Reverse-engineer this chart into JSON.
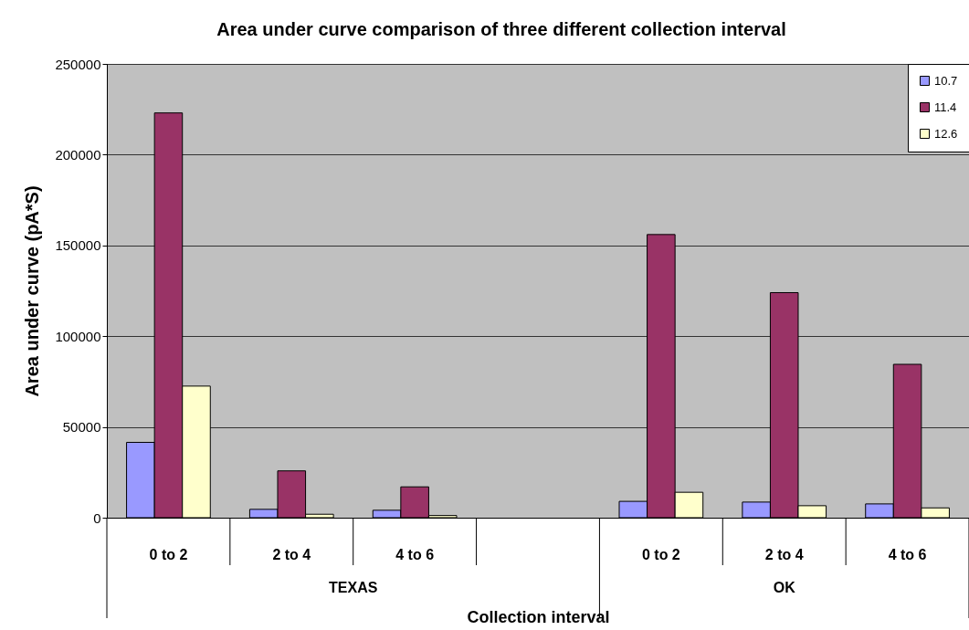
{
  "chart_data": {
    "type": "bar",
    "title": "Area under curve comparison of three different collection interval",
    "xlabel": "Collection interval",
    "ylabel": "Area under curve (pA*S)",
    "categories": [
      "0 to 2",
      "2 to 4",
      "4 to 6",
      null,
      "0 to 2",
      "2 to 4",
      "4 to 6"
    ],
    "series": [
      {
        "name": "10.7",
        "color": "#9999ff",
        "values": [
          41500,
          4600,
          4100,
          null,
          9000,
          8600,
          7600
        ]
      },
      {
        "name": "11.4",
        "color": "#993366",
        "values": [
          223000,
          25800,
          17000,
          null,
          156000,
          124000,
          84500
        ]
      },
      {
        "name": "12.6",
        "color": "#ffffcc",
        "values": [
          72500,
          1900,
          1200,
          null,
          14000,
          6600,
          5400
        ]
      }
    ],
    "annotations": [
      "TEXAS",
      "OK"
    ],
    "ylim": [
      0,
      250000
    ],
    "yticks": [
      0,
      50000,
      100000,
      150000,
      200000,
      250000
    ],
    "grid": "y",
    "legend": "top right"
  }
}
